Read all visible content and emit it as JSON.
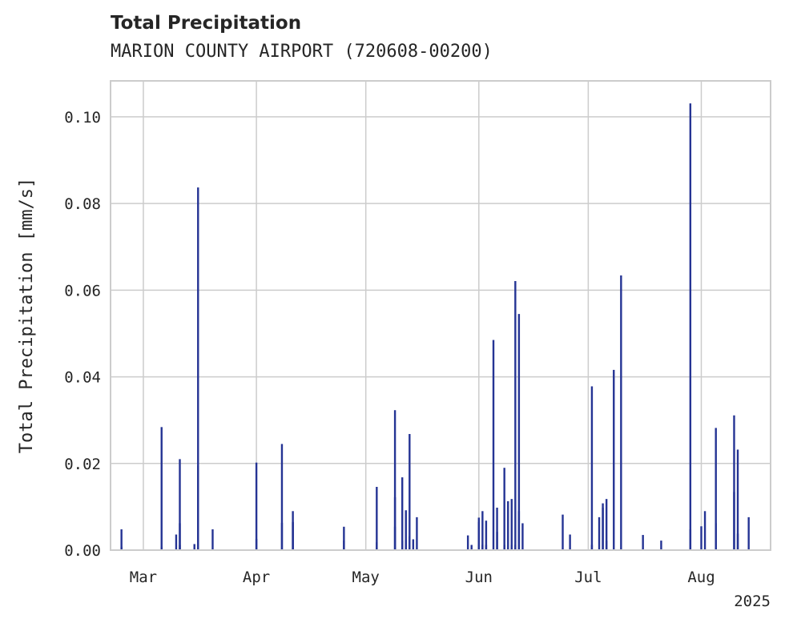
{
  "title": "Total Precipitation",
  "subtitle": "MARION COUNTY AIRPORT (720608-00200)",
  "chart_data": {
    "type": "bar",
    "ylabel": "Total Precipitation [mm/s]",
    "xlabel": "",
    "ylim": [
      0,
      0.1083
    ],
    "xlim": [
      "2025-02-20",
      "2025-08-20"
    ],
    "y_ticks": [
      "0.00",
      "0.02",
      "0.04",
      "0.06",
      "0.08",
      "0.10"
    ],
    "y_tick_values": [
      0,
      0.02,
      0.04,
      0.06,
      0.08,
      0.1
    ],
    "x_ticks": [
      {
        "date": "2025-03-01",
        "label": "Mar"
      },
      {
        "date": "2025-04-01",
        "label": "Apr"
      },
      {
        "date": "2025-05-01",
        "label": "May"
      },
      {
        "date": "2025-06-01",
        "label": "Jun"
      },
      {
        "date": "2025-07-01",
        "label": "Jul"
      },
      {
        "date": "2025-08-01",
        "label": "Aug"
      }
    ],
    "x_offset_label": "2025",
    "grid": true,
    "color": "#253494",
    "series": [
      {
        "x": [
          "2025-02-23",
          "2025-02-23",
          "2025-03-06",
          "2025-03-06",
          "2025-03-10",
          "2025-03-11",
          "2025-03-11",
          "2025-03-11",
          "2025-03-15",
          "2025-03-16",
          "2025-03-16",
          "2025-03-16",
          "2025-03-20",
          "2025-04-01",
          "2025-04-01",
          "2025-04-08",
          "2025-04-08",
          "2025-04-11",
          "2025-04-11",
          "2025-04-11",
          "2025-04-25",
          "2025-04-25",
          "2025-05-04",
          "2025-05-04",
          "2025-05-09",
          "2025-05-09",
          "2025-05-09",
          "2025-05-11",
          "2025-05-11",
          "2025-05-12",
          "2025-05-12",
          "2025-05-13",
          "2025-05-13",
          "2025-05-14",
          "2025-05-15",
          "2025-05-29",
          "2025-05-30",
          "2025-06-01",
          "2025-06-01",
          "2025-06-01",
          "2025-06-02",
          "2025-06-02",
          "2025-06-03",
          "2025-06-03",
          "2025-06-05",
          "2025-06-06",
          "2025-06-06",
          "2025-06-08",
          "2025-06-08",
          "2025-06-09",
          "2025-06-10",
          "2025-06-10",
          "2025-06-11",
          "2025-06-11",
          "2025-06-12",
          "2025-06-12",
          "2025-06-13",
          "2025-06-24",
          "2025-06-26",
          "2025-07-02",
          "2025-07-02",
          "2025-07-04",
          "2025-07-05",
          "2025-07-05",
          "2025-07-06",
          "2025-07-06",
          "2025-07-08",
          "2025-07-10",
          "2025-07-16",
          "2025-07-21",
          "2025-07-29",
          "2025-07-29",
          "2025-08-01",
          "2025-08-02",
          "2025-08-05",
          "2025-08-05",
          "2025-08-10",
          "2025-08-10",
          "2025-08-11",
          "2025-08-11",
          "2025-08-14"
        ],
        "values": [
          0.0008,
          0.0048,
          0.0008,
          0.0284,
          0.0036,
          0.021,
          0.0062,
          0.0012,
          0.0014,
          0.0195,
          0.0837,
          0.0115,
          0.0048,
          0.0026,
          0.0202,
          0.0063,
          0.0245,
          0.0064,
          0.009,
          0.0065,
          0.0054,
          0.0022,
          0.0146,
          0.0018,
          0.0122,
          0.0323,
          0.0054,
          0.0022,
          0.0168,
          0.0092,
          0.0024,
          0.0268,
          0.0032,
          0.0025,
          0.0076,
          0.0034,
          0.0012,
          0.0075,
          0.0065,
          0.0012,
          0.009,
          0.0012,
          0.0068,
          0.0012,
          0.0485,
          0.0098,
          0.0042,
          0.019,
          0.0012,
          0.0113,
          0.0118,
          0.0012,
          0.0621,
          0.0012,
          0.0545,
          0.009,
          0.0062,
          0.0082,
          0.0036,
          0.0378,
          0.0012,
          0.0076,
          0.0098,
          0.0108,
          0.0118,
          0.0022,
          0.0416,
          0.0634,
          0.0035,
          0.0022,
          0.1031,
          0.0048,
          0.0055,
          0.009,
          0.0282,
          0.0062,
          0.0134,
          0.0311,
          0.0232,
          0.0038,
          0.0076
        ]
      }
    ]
  }
}
